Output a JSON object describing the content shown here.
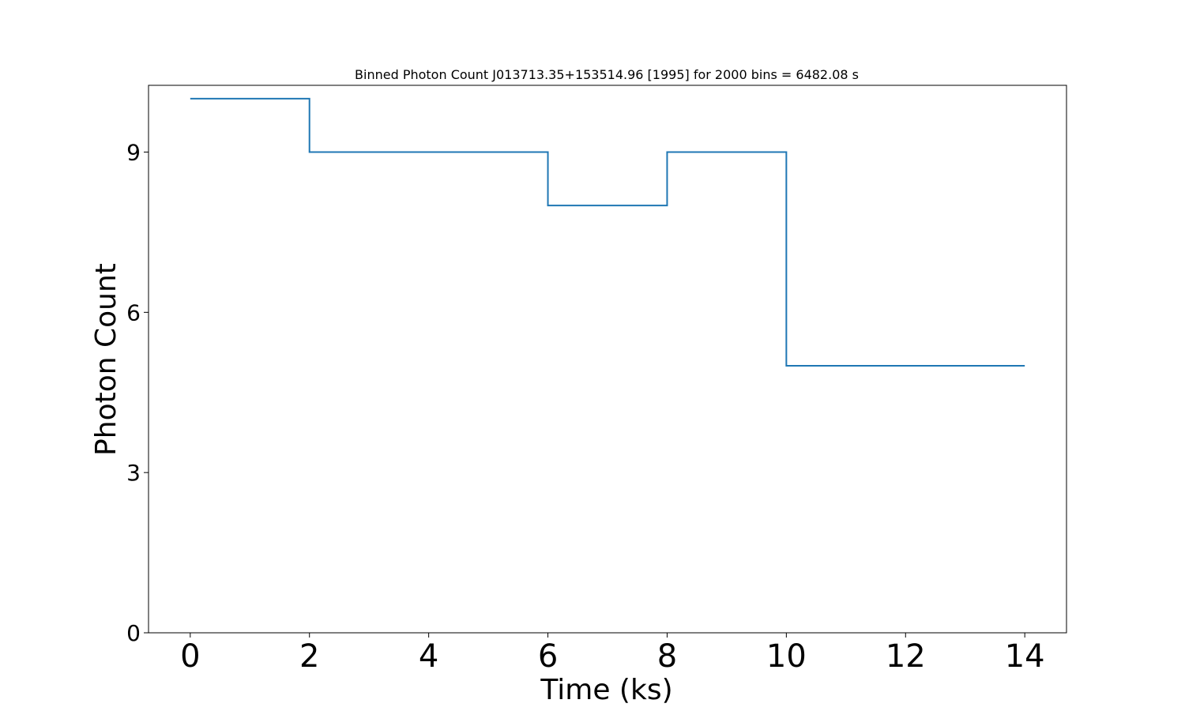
{
  "chart_data": {
    "type": "line",
    "drawstyle": "steps-post",
    "title": "Binned Photon Count J013713.35+153514.96 [1995] for 2000 bins = 6482.08 s",
    "xlabel": "Time (ks)",
    "ylabel": "Photon Count",
    "xlim": [
      -0.7,
      14.7
    ],
    "ylim": [
      0,
      10.25
    ],
    "xticks": [
      0,
      2,
      4,
      6,
      8,
      10,
      12,
      14
    ],
    "xtick_labels": [
      "0",
      "2",
      "4",
      "6",
      "8",
      "10",
      "12",
      "14"
    ],
    "yticks": [
      0,
      3,
      6,
      9
    ],
    "ytick_labels": [
      "0",
      "3",
      "6",
      "9"
    ],
    "grid": false,
    "series": [
      {
        "color": "#1f77b4",
        "x": [
          0,
          2,
          4,
          6,
          8,
          10,
          12,
          14
        ],
        "y": [
          10,
          9,
          9,
          8,
          9,
          5,
          5,
          5
        ]
      }
    ]
  }
}
